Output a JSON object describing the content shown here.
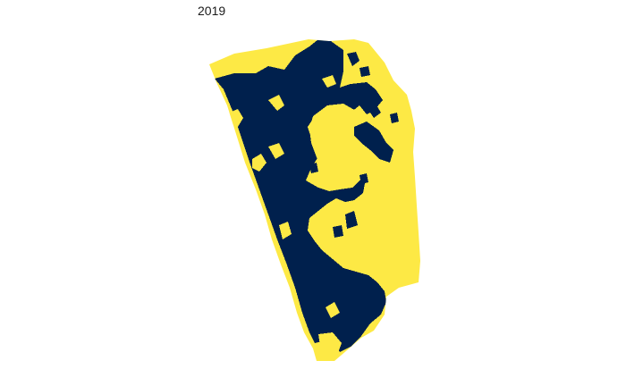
{
  "title": "2019",
  "map": {
    "classes": [
      {
        "name": "class-a",
        "color": "#FDE945"
      },
      {
        "name": "class-b",
        "color": "#00204D"
      }
    ],
    "background": "#ffffff",
    "legend": "none",
    "axes": "none"
  }
}
